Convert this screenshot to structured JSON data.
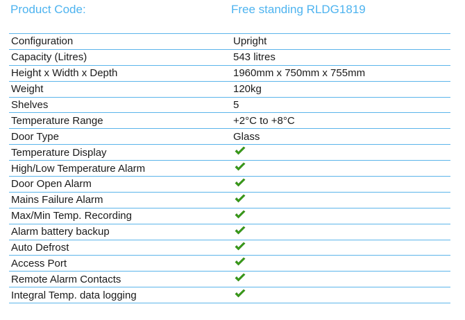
{
  "header": {
    "label": "Product Code:",
    "value": "Free standing RLDG1819"
  },
  "colors": {
    "accent": "#4db3ef",
    "check": "#3aa01a"
  },
  "rows": [
    {
      "label": "Configuration",
      "value": "Upright"
    },
    {
      "label": "Capacity (Litres)",
      "value": "543 litres"
    },
    {
      "label": "Height x Width x Depth",
      "value": "1960mm x 750mm x 755mm"
    },
    {
      "label": "Weight",
      "value": "120kg"
    },
    {
      "label": "Shelves",
      "value": "5"
    },
    {
      "label": "Temperature Range",
      "value": "+2°C to +8°C"
    },
    {
      "label": "Door Type",
      "value": "Glass"
    },
    {
      "label": "Temperature Display",
      "icon": "check-icon"
    },
    {
      "label": "High/Low Temperature Alarm",
      "icon": "check-icon"
    },
    {
      "label": "Door Open Alarm",
      "icon": "check-icon"
    },
    {
      "label": "Mains Failure Alarm",
      "icon": "check-icon"
    },
    {
      "label": "Max/Min Temp. Recording",
      "icon": "check-icon"
    },
    {
      "label": "Alarm battery backup",
      "icon": "check-icon"
    },
    {
      "label": "Auto Defrost",
      "icon": "check-icon"
    },
    {
      "label": "Access Port",
      "icon": "check-icon"
    },
    {
      "label": "Remote Alarm Contacts",
      "icon": "check-icon"
    },
    {
      "label": "Integral Temp. data logging",
      "icon": "check-icon"
    }
  ]
}
